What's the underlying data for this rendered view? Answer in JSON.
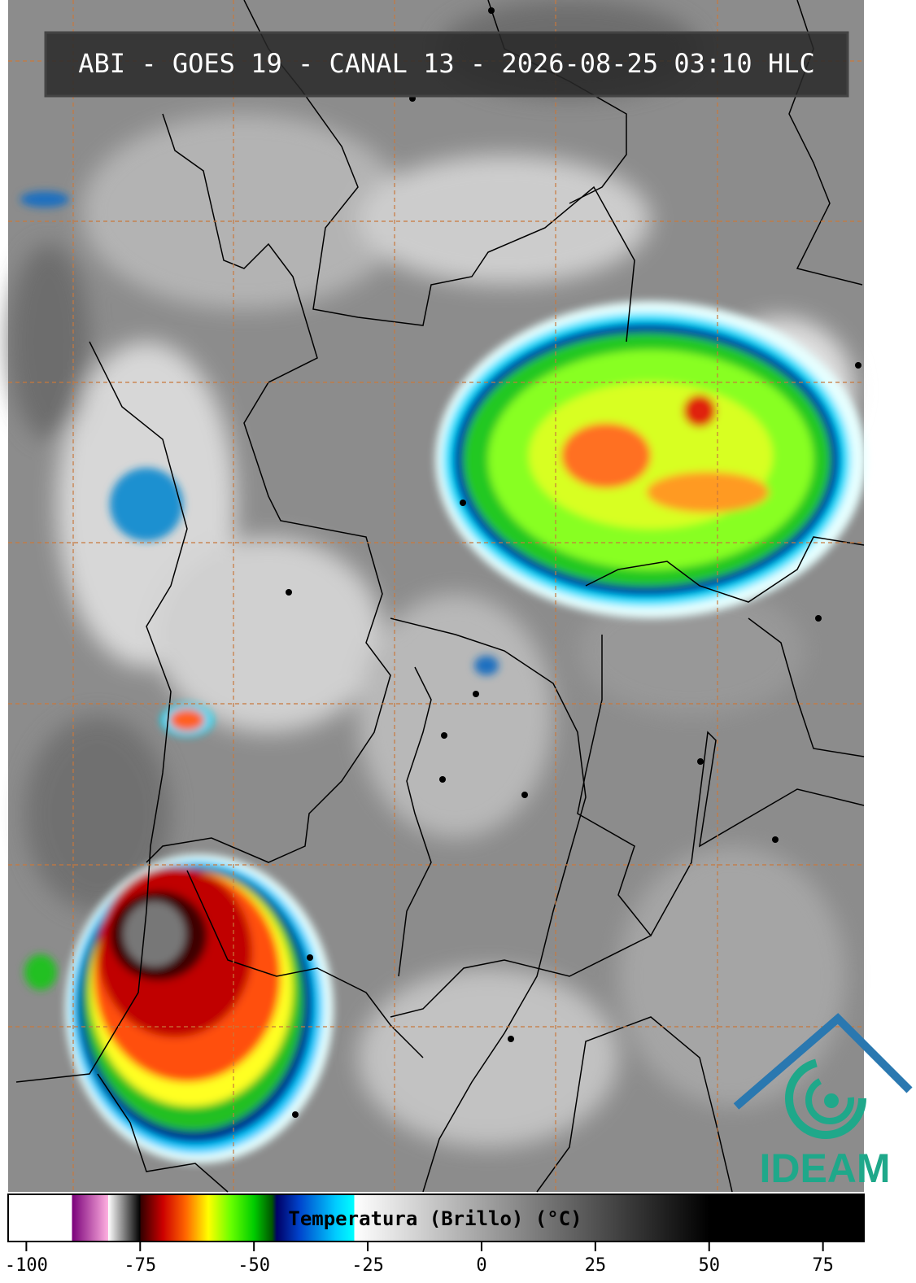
{
  "header": {
    "title": "ABI - GOES 19 - CANAL 13 - 2026-08-25 03:10 HLC"
  },
  "colorbar": {
    "label": "Temperatura (Brillo) (°C)",
    "xlim": [
      -104,
      84
    ],
    "ticks": [
      -100,
      -75,
      -50,
      -25,
      0,
      25,
      50,
      75
    ],
    "colormap": [
      {
        "value": -104,
        "color": "#ffffff"
      },
      {
        "value": -90,
        "color": "#ffffff"
      },
      {
        "value": -90,
        "color": "#7a007a"
      },
      {
        "value": -82,
        "color": "#ffb0e0"
      },
      {
        "value": -82,
        "color": "#ffffff"
      },
      {
        "value": -75,
        "color": "#000000"
      },
      {
        "value": -75,
        "color": "#300000"
      },
      {
        "value": -70,
        "color": "#cc0000"
      },
      {
        "value": -65,
        "color": "#ff6600"
      },
      {
        "value": -60,
        "color": "#ffff00"
      },
      {
        "value": -55,
        "color": "#66ff00"
      },
      {
        "value": -50,
        "color": "#00cc00"
      },
      {
        "value": -46,
        "color": "#005500"
      },
      {
        "value": -45,
        "color": "#000066"
      },
      {
        "value": -40,
        "color": "#0044cc"
      },
      {
        "value": -32,
        "color": "#00ccff"
      },
      {
        "value": -28,
        "color": "#00ffff"
      },
      {
        "value": -28,
        "color": "#ffffff"
      },
      {
        "value": 50,
        "color": "#000000"
      },
      {
        "value": 84,
        "color": "#000000"
      }
    ]
  },
  "logo": {
    "text": "IDEAM"
  }
}
